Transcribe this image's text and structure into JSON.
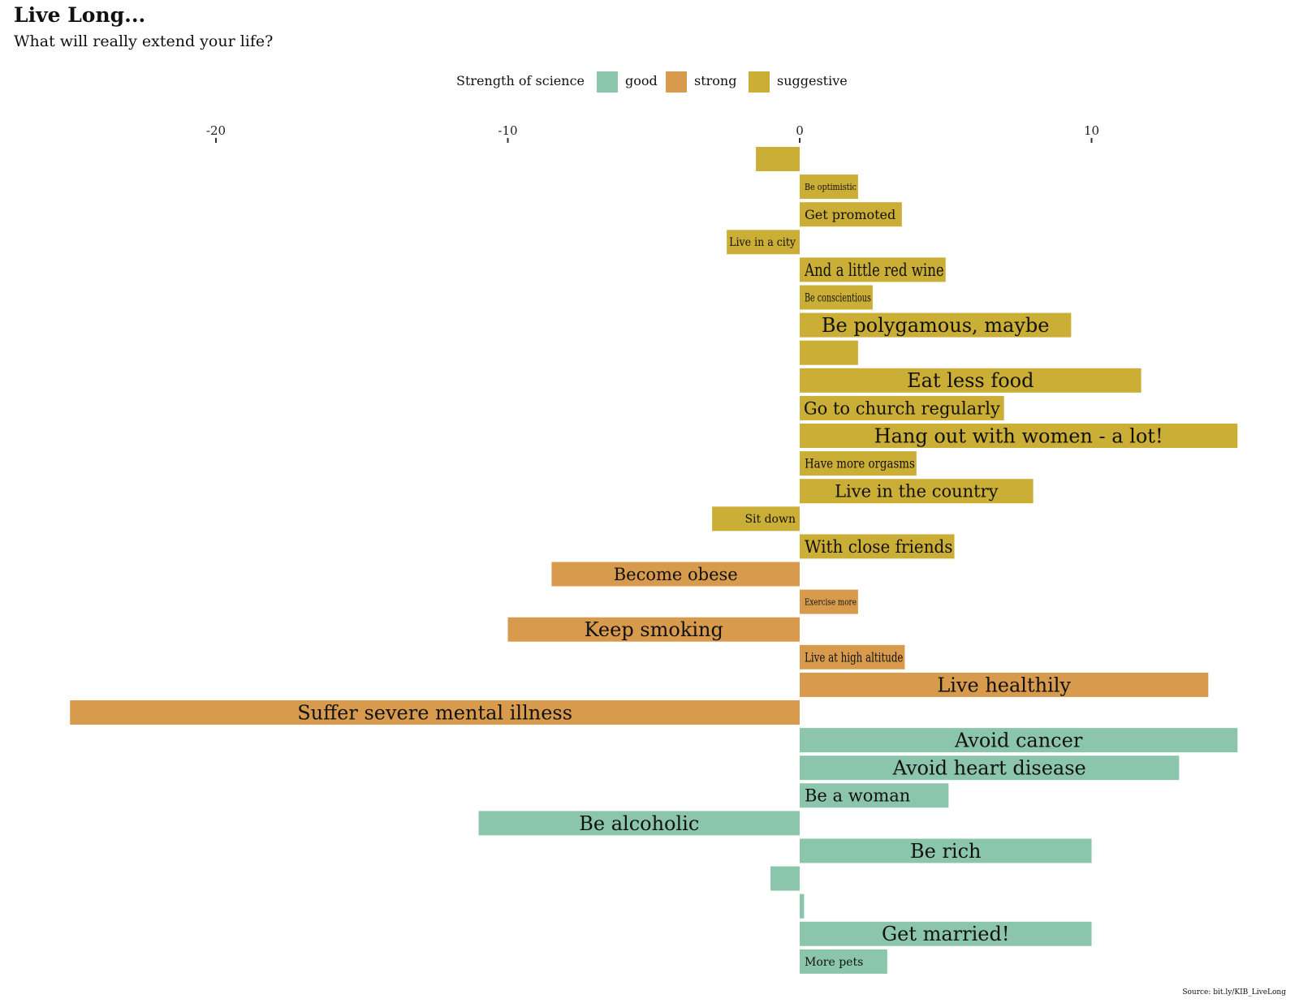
{
  "title": "Live Long...",
  "subtitle": "What will really extend your life?",
  "source": "Source: bit.ly/KIB_LiveLong",
  "legend": {
    "title": "Strength of science",
    "items": [
      {
        "label": "good",
        "color": "#8BC5AB"
      },
      {
        "label": "strong",
        "color": "#D89B4E"
      },
      {
        "label": "suggestive",
        "color": "#CBAE35"
      }
    ]
  },
  "chart_data": {
    "type": "bar",
    "orientation": "horizontal",
    "xlim": [
      -25.5,
      17
    ],
    "xticks": [
      -20,
      -10,
      0,
      10
    ],
    "xtick_labels": [
      "-20",
      "-10",
      "0",
      "10"
    ],
    "grid": false,
    "bars": [
      {
        "label": "",
        "value": -1.5,
        "category": "suggestive"
      },
      {
        "label": "Be optimistic",
        "value": 2,
        "category": "suggestive"
      },
      {
        "label": "Get promoted",
        "value": 3.5,
        "category": "suggestive"
      },
      {
        "label": "Live in a city",
        "value": -2.5,
        "category": "suggestive"
      },
      {
        "label": "And a little red wine",
        "value": 5,
        "category": "suggestive"
      },
      {
        "label": "Be conscientious",
        "value": 2.5,
        "category": "suggestive"
      },
      {
        "label": "Be polygamous, maybe",
        "value": 9.3,
        "category": "suggestive"
      },
      {
        "label": "",
        "value": 2,
        "category": "suggestive"
      },
      {
        "label": "Eat less food",
        "value": 11.7,
        "category": "suggestive"
      },
      {
        "label": "Go to church regularly",
        "value": 7,
        "category": "suggestive"
      },
      {
        "label": "Hang out with women - a lot!",
        "value": 15,
        "category": "suggestive"
      },
      {
        "label": "Have more orgasms",
        "value": 4,
        "category": "suggestive"
      },
      {
        "label": "Live in the country",
        "value": 8,
        "category": "suggestive"
      },
      {
        "label": "Sit down",
        "value": -3,
        "category": "suggestive"
      },
      {
        "label": "With close friends",
        "value": 5.3,
        "category": "suggestive"
      },
      {
        "label": "Become obese",
        "value": -8.5,
        "category": "strong"
      },
      {
        "label": "Exercise more",
        "value": 2,
        "category": "strong"
      },
      {
        "label": "Keep smoking",
        "value": -10,
        "category": "strong"
      },
      {
        "label": "Live at high altitude",
        "value": 3.6,
        "category": "strong"
      },
      {
        "label": "Live healthily",
        "value": 14,
        "category": "strong"
      },
      {
        "label": "Suffer severe mental illness",
        "value": -25,
        "category": "strong"
      },
      {
        "label": "Avoid cancer",
        "value": 15,
        "category": "good"
      },
      {
        "label": "Avoid heart disease",
        "value": 13,
        "category": "good"
      },
      {
        "label": "Be a woman",
        "value": 5.1,
        "category": "good"
      },
      {
        "label": "Be alcoholic",
        "value": -11,
        "category": "good"
      },
      {
        "label": "Be rich",
        "value": 10,
        "category": "good"
      },
      {
        "label": "",
        "value": -1,
        "category": "good"
      },
      {
        "label": "",
        "value": 0.15,
        "category": "good"
      },
      {
        "label": "Get married!",
        "value": 10,
        "category": "good"
      },
      {
        "label": "More pets",
        "value": 3,
        "category": "good"
      }
    ]
  }
}
